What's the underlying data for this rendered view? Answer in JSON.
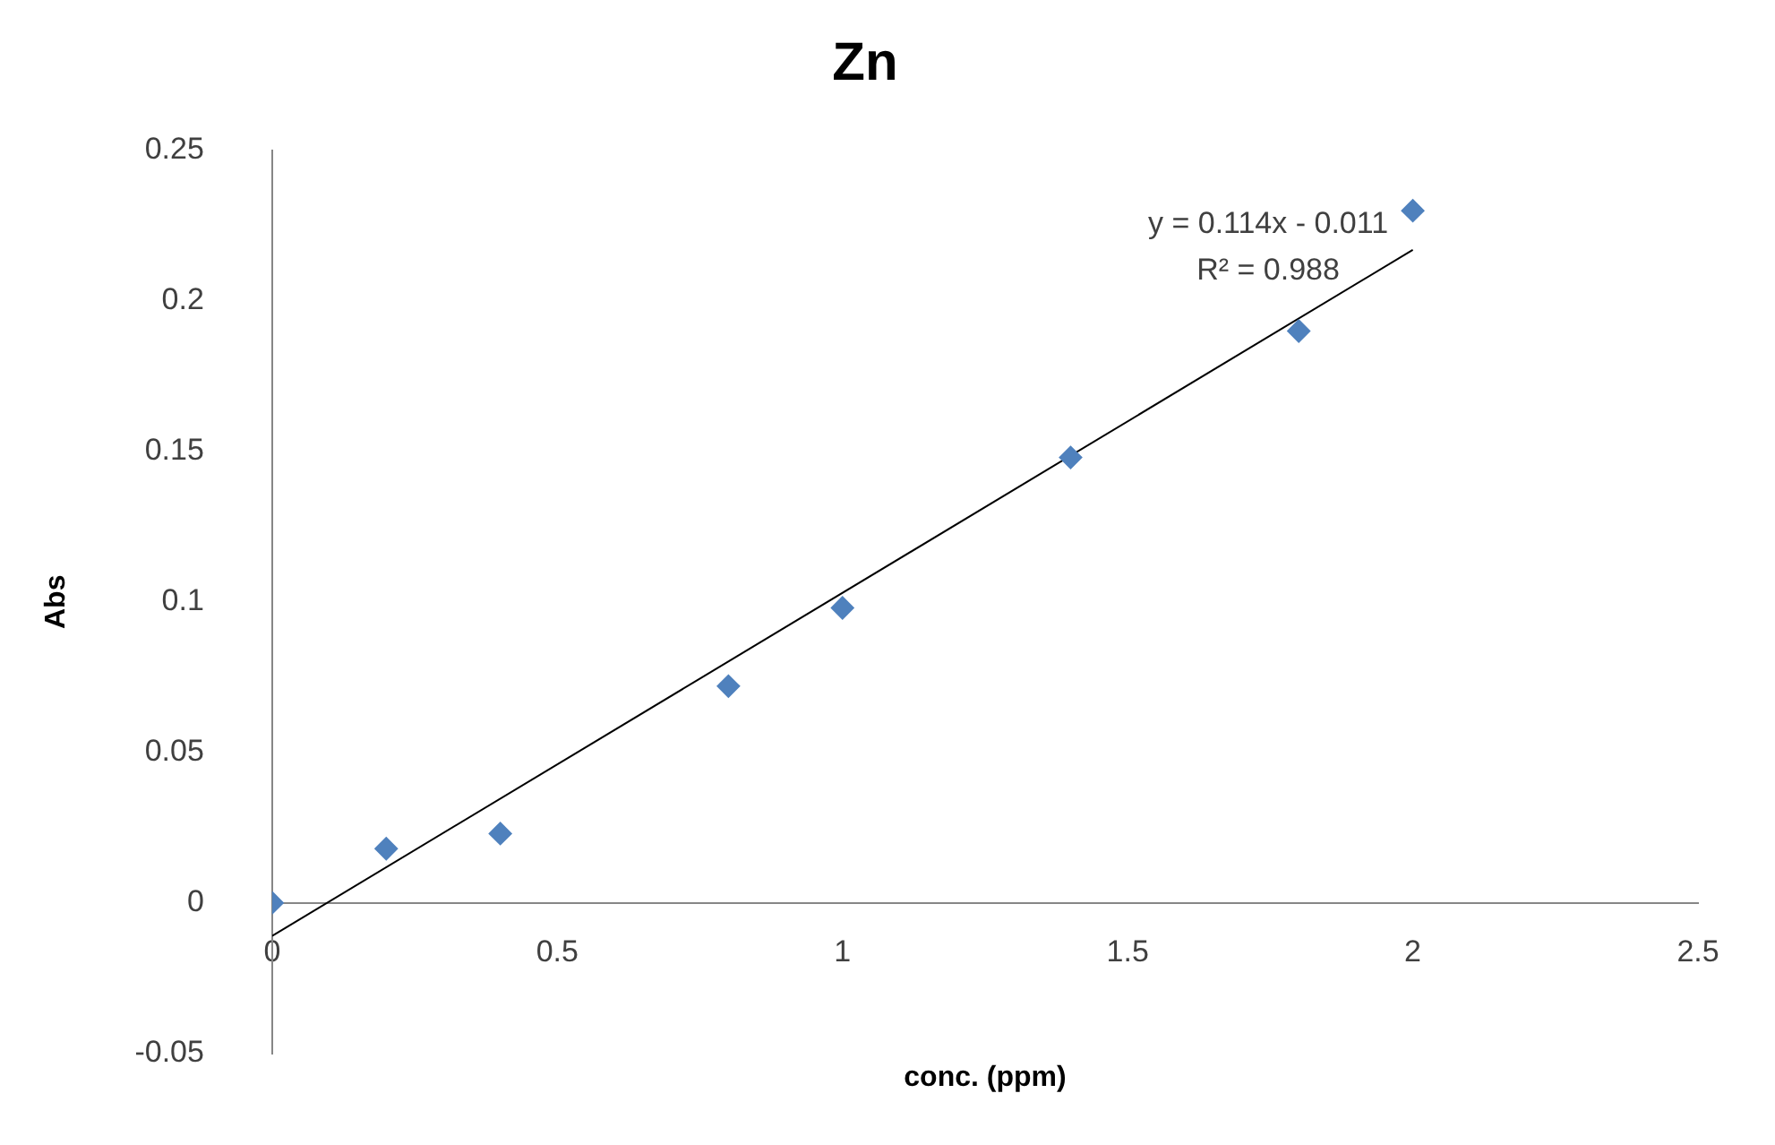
{
  "chart_data": {
    "type": "scatter",
    "title": "Zn",
    "xlabel": "conc. (ppm)",
    "ylabel": "Abs",
    "xlim": [
      0,
      2.5
    ],
    "xticks": [
      0,
      0.5,
      1,
      1.5,
      2,
      2.5
    ],
    "ylim": [
      -0.05,
      0.25
    ],
    "yticks": [
      -0.05,
      0,
      0.05,
      0.1,
      0.15,
      0.2,
      0.25
    ],
    "grid": false,
    "legend": false,
    "marker": "diamond",
    "series": [
      {
        "type": "scatter",
        "color": "#4f81bd",
        "x": [
          0,
          0.2,
          0.4,
          0.8,
          1,
          1.4,
          1.8,
          2
        ],
        "values": [
          0,
          0.018,
          0.023,
          0.072,
          0.098,
          0.148,
          0.19,
          0.23
        ]
      },
      {
        "type": "line",
        "color": "#000000",
        "marker": "none",
        "x": [
          0,
          2
        ],
        "values": [
          -0.011,
          0.217
        ]
      }
    ],
    "annotations": [
      "y = 0.114x - 0.011",
      "R² = 0.988"
    ]
  }
}
